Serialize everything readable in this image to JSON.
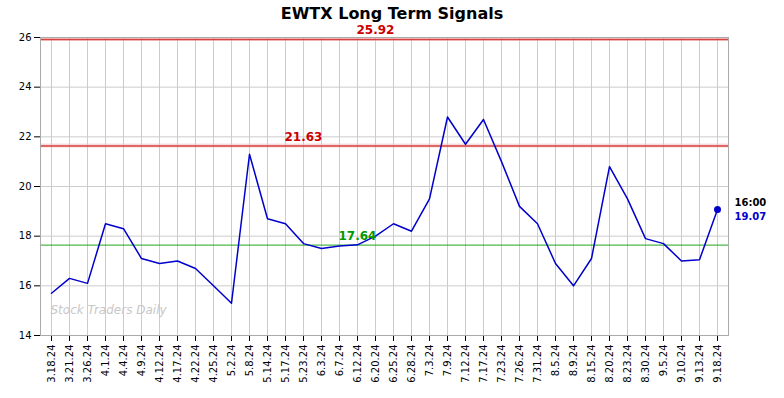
{
  "chart_data": {
    "type": "line",
    "title": "EWTX Long Term Signals",
    "categories": [
      "3.18.24",
      "3.21.24",
      "3.26.24",
      "4.1.24",
      "4.4.24",
      "4.9.24",
      "4.12.24",
      "4.17.24",
      "4.22.24",
      "4.25.24",
      "5.2.24",
      "5.8.24",
      "5.14.24",
      "5.17.24",
      "5.23.24",
      "6.3.24",
      "6.7.24",
      "6.12.24",
      "6.20.24",
      "6.25.24",
      "6.28.24",
      "7.3.24",
      "7.9.24",
      "7.12.24",
      "7.17.24",
      "7.23.24",
      "7.26.24",
      "7.31.24",
      "8.5.24",
      "8.9.24",
      "8.15.24",
      "8.20.24",
      "8.23.24",
      "8.30.24",
      "9.5.24",
      "9.10.24",
      "9.13.24",
      "9.18.24"
    ],
    "values": [
      15.7,
      16.3,
      16.1,
      18.5,
      18.3,
      17.1,
      16.9,
      17.0,
      16.7,
      16.0,
      15.3,
      21.3,
      18.7,
      18.5,
      17.7,
      17.5,
      17.6,
      17.65,
      18.0,
      18.5,
      18.2,
      19.5,
      22.8,
      21.7,
      22.7,
      21.0,
      19.2,
      18.5,
      16.9,
      16.0,
      17.1,
      20.8,
      19.5,
      17.9,
      17.7,
      17.0,
      17.05,
      19.07
    ],
    "color": "#0000cc",
    "ylim": [
      14,
      26
    ],
    "yticks": [
      14,
      16,
      18,
      20,
      22,
      24,
      26
    ],
    "grid": true,
    "annotations": [
      {
        "text": "25.92",
        "value": 25.92,
        "x": "6.20.24",
        "color": "#cc0000"
      },
      {
        "text": "21.63",
        "value": 21.63,
        "x": "5.23.24",
        "color": "#cc0000"
      },
      {
        "text": "17.64",
        "value": 17.64,
        "x": "6.12.24",
        "color": "#009900"
      }
    ],
    "current_point": {
      "x": "9.18.24",
      "value": 19.07,
      "time_label": "16:00",
      "price_label": "19.07"
    },
    "watermark": "Stock Traders Daily"
  }
}
